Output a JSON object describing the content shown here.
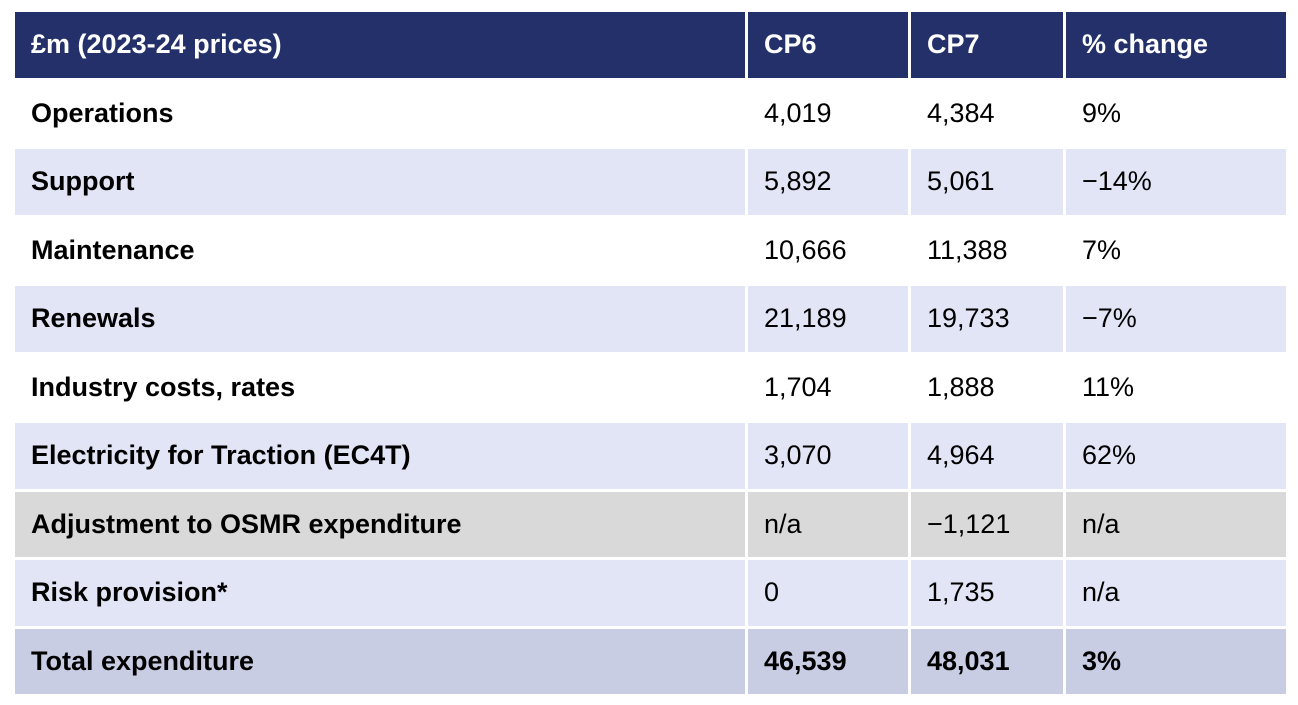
{
  "header": {
    "label": "£m (2023-24 prices)",
    "cp6": "CP6",
    "cp7": "CP7",
    "change": "% change"
  },
  "rows": [
    {
      "label": "Operations",
      "cp6": "4,019",
      "cp7": "4,384",
      "change": "9%"
    },
    {
      "label": "Support",
      "cp6": "5,892",
      "cp7": "5,061",
      "change": "−14%"
    },
    {
      "label": "Maintenance",
      "cp6": "10,666",
      "cp7": "11,388",
      "change": "7%"
    },
    {
      "label": "Renewals",
      "cp6": "21,189",
      "cp7": "19,733",
      "change": "−7%"
    },
    {
      "label": "Industry costs, rates",
      "cp6": "1,704",
      "cp7": "1,888",
      "change": "11%"
    },
    {
      "label": "Electricity for Traction (EC4T)",
      "cp6": "3,070",
      "cp7": "4,964",
      "change": "62%"
    },
    {
      "label": "Adjustment to OSMR expenditure",
      "cp6": "n/a",
      "cp7": "−1,121",
      "change": "n/a"
    },
    {
      "label": "Risk provision*",
      "cp6": "0",
      "cp7": "1,735",
      "change": "n/a"
    }
  ],
  "total": {
    "label": "Total expenditure",
    "cp6": "46,539",
    "cp7": "48,031",
    "change": "3%"
  },
  "colors": {
    "header_bg": "#23306a",
    "shaded_row": "#e2e5f5",
    "grey_row": "#d9d9d9",
    "total_row": "#c9cde4"
  }
}
